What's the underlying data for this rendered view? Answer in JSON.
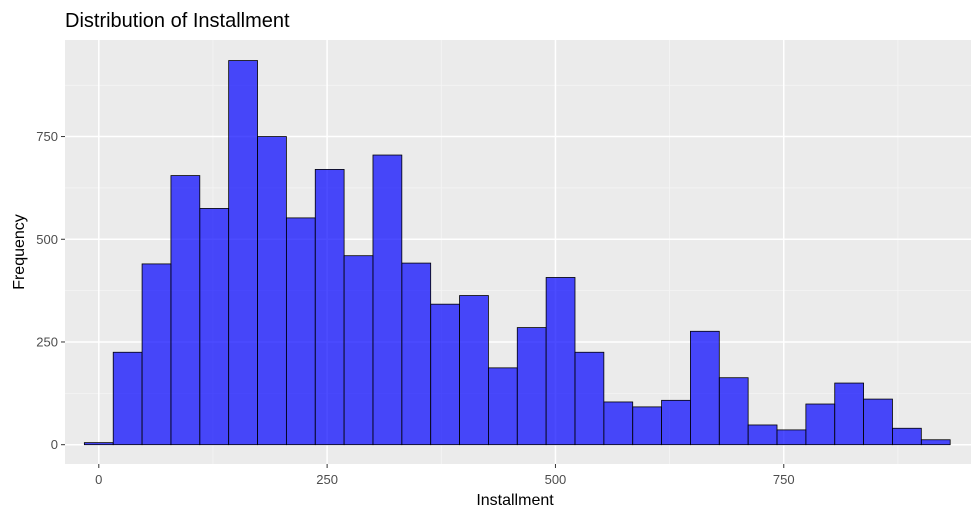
{
  "chart_data": {
    "type": "bar",
    "title": "Distribution of Installment",
    "xlabel": "Installment",
    "ylabel": "Frequency",
    "x_ticks": [
      0,
      250,
      500,
      750
    ],
    "y_ticks": [
      0,
      250,
      500,
      750
    ],
    "xlim": [
      -37,
      955
    ],
    "ylim": [
      -47,
      985
    ],
    "bin_width": 31.6,
    "bins": [
      {
        "x0": -15.8,
        "x1": 15.8,
        "count": 5
      },
      {
        "x0": 15.8,
        "x1": 47.4,
        "count": 225
      },
      {
        "x0": 47.4,
        "x1": 79.0,
        "count": 440
      },
      {
        "x0": 79.0,
        "x1": 110.6,
        "count": 655
      },
      {
        "x0": 110.6,
        "x1": 142.2,
        "count": 575
      },
      {
        "x0": 142.2,
        "x1": 173.8,
        "count": 935
      },
      {
        "x0": 173.8,
        "x1": 205.4,
        "count": 750
      },
      {
        "x0": 205.4,
        "x1": 237.0,
        "count": 552
      },
      {
        "x0": 237.0,
        "x1": 268.6,
        "count": 670
      },
      {
        "x0": 268.6,
        "x1": 300.2,
        "count": 460
      },
      {
        "x0": 300.2,
        "x1": 331.8,
        "count": 705
      },
      {
        "x0": 331.8,
        "x1": 363.4,
        "count": 442
      },
      {
        "x0": 363.4,
        "x1": 395.0,
        "count": 342
      },
      {
        "x0": 395.0,
        "x1": 426.6,
        "count": 363
      },
      {
        "x0": 426.6,
        "x1": 458.2,
        "count": 187
      },
      {
        "x0": 458.2,
        "x1": 489.8,
        "count": 285
      },
      {
        "x0": 489.8,
        "x1": 521.4,
        "count": 407
      },
      {
        "x0": 521.4,
        "x1": 553.0,
        "count": 225
      },
      {
        "x0": 553.0,
        "x1": 584.6,
        "count": 104
      },
      {
        "x0": 584.6,
        "x1": 616.2,
        "count": 92
      },
      {
        "x0": 616.2,
        "x1": 647.8,
        "count": 108
      },
      {
        "x0": 647.8,
        "x1": 679.4,
        "count": 276
      },
      {
        "x0": 679.4,
        "x1": 711.0,
        "count": 163
      },
      {
        "x0": 711.0,
        "x1": 742.6,
        "count": 48
      },
      {
        "x0": 742.6,
        "x1": 774.2,
        "count": 36
      },
      {
        "x0": 774.2,
        "x1": 805.8,
        "count": 99
      },
      {
        "x0": 805.8,
        "x1": 837.4,
        "count": 150
      },
      {
        "x0": 837.4,
        "x1": 869.0,
        "count": 111
      },
      {
        "x0": 869.0,
        "x1": 900.6,
        "count": 40
      },
      {
        "x0": 900.6,
        "x1": 932.2,
        "count": 12
      }
    ],
    "grid": true,
    "legend": "none",
    "colors": {
      "bar_fill": "#0000FF",
      "bar_fill_opacity": 0.7,
      "bar_outline": "#000000",
      "panel_background": "#EBEBEB",
      "grid_major": "#FFFFFF",
      "grid_minor": "#F5F5F5",
      "axis_text": "#4D4D4D",
      "title_text": "#000000"
    }
  }
}
